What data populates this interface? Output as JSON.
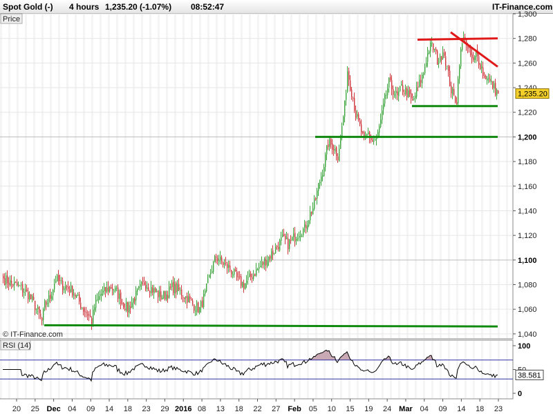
{
  "header": {
    "title": "Spot Gold (-)",
    "interval": "4 hours",
    "quote": "1,235.20 (-1.07%)",
    "time": "08:52:47",
    "brand": "IT-Finance.com"
  },
  "price_panel": {
    "tag": "Price",
    "watermark": "© IT-Finance.com",
    "last_label": "1,235.20"
  },
  "rsi_panel": {
    "tag": "RSI (14)",
    "last_label": "38.581"
  },
  "colors": {
    "up": "#3aa53a",
    "down": "#d0343a",
    "support": "#0f8a0f",
    "resistance": "#e01818",
    "rsi_bands": "#3030a0",
    "last_bg": "#f3cf2a"
  },
  "chart_data": [
    {
      "type": "candlestick",
      "title": "Spot Gold (-) 4 hours",
      "ylabel": "Price",
      "ylim": [
        1036,
        1300
      ],
      "y_ticks": [
        "1,040",
        "1,060",
        "1,080",
        "1,100",
        "1,120",
        "1,140",
        "1,160",
        "1,180",
        "1,200",
        "1,220",
        "1,240",
        "1,260",
        "1,280",
        "1,300"
      ],
      "y_ticks_bold": [
        "1,100",
        "1,200"
      ],
      "x_ticks": [
        "20",
        "25",
        "Dec",
        "04",
        "09",
        "14",
        "18",
        "23",
        "29",
        "2016",
        "08",
        "13",
        "18",
        "22",
        "27",
        "Feb",
        "05",
        "10",
        "15",
        "19",
        "24",
        "Mar",
        "04",
        "09",
        "14",
        "18",
        "23"
      ],
      "x_ticks_bold": [
        "Dec",
        "2016",
        "Feb",
        "Mar"
      ],
      "last_price": 1235.2,
      "price_path": [
        [
          0,
          1085
        ],
        [
          6,
          1081
        ],
        [
          12,
          1078
        ],
        [
          18,
          1072
        ],
        [
          22,
          1065
        ],
        [
          25,
          1058
        ],
        [
          28,
          1050
        ],
        [
          30,
          1063
        ],
        [
          34,
          1070
        ],
        [
          38,
          1085
        ],
        [
          42,
          1080
        ],
        [
          46,
          1078
        ],
        [
          50,
          1075
        ],
        [
          54,
          1068
        ],
        [
          58,
          1060
        ],
        [
          62,
          1055
        ],
        [
          64,
          1050
        ],
        [
          66,
          1062
        ],
        [
          70,
          1072
        ],
        [
          74,
          1075
        ],
        [
          78,
          1078
        ],
        [
          82,
          1074
        ],
        [
          86,
          1066
        ],
        [
          90,
          1060
        ],
        [
          94,
          1068
        ],
        [
          98,
          1075
        ],
        [
          102,
          1082
        ],
        [
          106,
          1078
        ],
        [
          110,
          1074
        ],
        [
          114,
          1070
        ],
        [
          118,
          1072
        ],
        [
          122,
          1078
        ],
        [
          126,
          1076
        ],
        [
          130,
          1072
        ],
        [
          134,
          1068
        ],
        [
          138,
          1063
        ],
        [
          142,
          1060
        ],
        [
          146,
          1072
        ],
        [
          150,
          1090
        ],
        [
          154,
          1103
        ],
        [
          158,
          1098
        ],
        [
          162,
          1095
        ],
        [
          166,
          1090
        ],
        [
          170,
          1083
        ],
        [
          174,
          1080
        ],
        [
          178,
          1085
        ],
        [
          182,
          1090
        ],
        [
          186,
          1095
        ],
        [
          190,
          1100
        ],
        [
          194,
          1105
        ],
        [
          198,
          1111
        ],
        [
          202,
          1117
        ],
        [
          206,
          1113
        ],
        [
          210,
          1118
        ],
        [
          214,
          1123
        ],
        [
          218,
          1125
        ],
        [
          221,
          1135
        ],
        [
          225,
          1145
        ],
        [
          228,
          1160
        ],
        [
          231,
          1173
        ],
        [
          233,
          1183
        ],
        [
          235,
          1195
        ],
        [
          238,
          1193
        ],
        [
          240,
          1190
        ],
        [
          242,
          1185
        ],
        [
          244,
          1200
        ],
        [
          247,
          1225
        ],
        [
          249,
          1254
        ],
        [
          251,
          1242
        ],
        [
          253,
          1232
        ],
        [
          255,
          1218
        ],
        [
          258,
          1208
        ],
        [
          261,
          1196
        ],
        [
          264,
          1203
        ],
        [
          267,
          1196
        ],
        [
          270,
          1198
        ],
        [
          273,
          1212
        ],
        [
          276,
          1230
        ],
        [
          279,
          1244
        ],
        [
          282,
          1238
        ],
        [
          285,
          1232
        ],
        [
          288,
          1240
        ],
        [
          292,
          1236
        ],
        [
          296,
          1228
        ],
        [
          300,
          1240
        ],
        [
          304,
          1252
        ],
        [
          306,
          1263
        ],
        [
          308,
          1272
        ],
        [
          310,
          1274
        ],
        [
          312,
          1270
        ],
        [
          314,
          1262
        ],
        [
          316,
          1262
        ],
        [
          318,
          1272
        ],
        [
          320,
          1262
        ],
        [
          322,
          1250
        ],
        [
          324,
          1238
        ],
        [
          326,
          1232
        ],
        [
          328,
          1230
        ],
        [
          330,
          1262
        ],
        [
          332,
          1275
        ],
        [
          334,
          1282
        ],
        [
          336,
          1270
        ],
        [
          338,
          1266
        ],
        [
          340,
          1260
        ],
        [
          342,
          1268
        ],
        [
          344,
          1262
        ],
        [
          346,
          1256
        ],
        [
          348,
          1248
        ],
        [
          350,
          1250
        ],
        [
          352,
          1244
        ],
        [
          354,
          1242
        ],
        [
          356,
          1238
        ],
        [
          358,
          1235.2
        ]
      ],
      "support_lines": [
        [
          [
            30,
            1047
          ],
          [
            358,
            1046
          ]
        ],
        [
          [
            226,
            1200
          ],
          [
            358,
            1200
          ]
        ],
        [
          [
            296,
            1225
          ],
          [
            358,
            1225
          ]
        ]
      ],
      "resistance_lines": [
        [
          [
            300,
            1279
          ],
          [
            358,
            1280
          ]
        ],
        [
          [
            324,
            1285
          ],
          [
            358,
            1257
          ]
        ]
      ]
    },
    {
      "type": "line",
      "title": "RSI (14)",
      "ylim": [
        0,
        100
      ],
      "y_ticks": [
        "100",
        "50",
        "0"
      ],
      "band_lines": [
        70,
        30
      ],
      "last_value": 38.581
    }
  ]
}
